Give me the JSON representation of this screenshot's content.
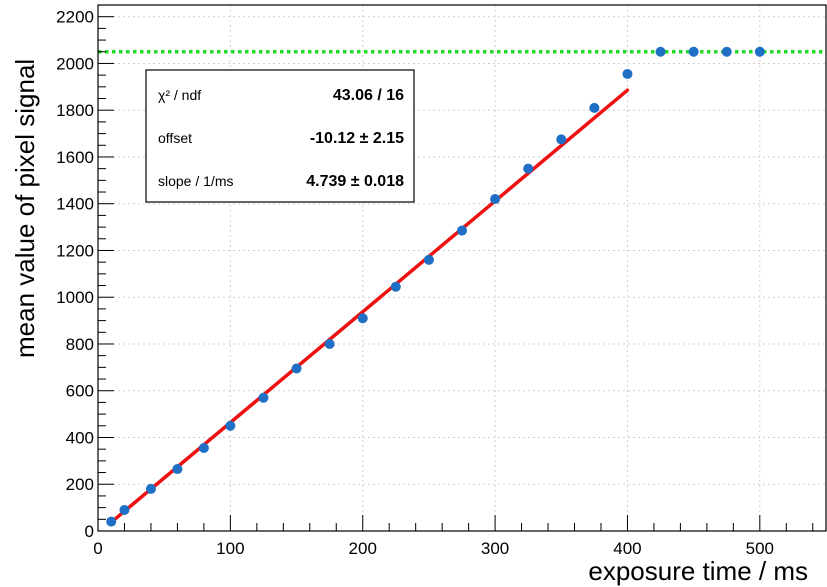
{
  "chart_data": {
    "type": "scatter",
    "title": "",
    "xlabel": "exposure time / ms",
    "ylabel": "mean value of pixel signal",
    "xlim": [
      0,
      550
    ],
    "ylim": [
      0,
      2250
    ],
    "x_ticks": [
      0,
      100,
      200,
      300,
      400,
      500
    ],
    "y_ticks": [
      0,
      200,
      400,
      600,
      800,
      1000,
      1200,
      1400,
      1600,
      1800,
      2000,
      2200
    ],
    "grid": true,
    "colors": {
      "points": "#1f6fc5",
      "fit": "#ee1111",
      "saturation": "#22dd22"
    },
    "series": [
      {
        "x": [
          10,
          20,
          40,
          60,
          80,
          100,
          125,
          150,
          175,
          200,
          225,
          250,
          275,
          300,
          325,
          350,
          375,
          400,
          425,
          450,
          475,
          500
        ],
        "y": [
          40,
          90,
          180,
          265,
          355,
          450,
          570,
          695,
          800,
          910,
          1045,
          1160,
          1285,
          1420,
          1550,
          1675,
          1810,
          1955,
          2050,
          2050,
          2050,
          2050
        ]
      }
    ],
    "fit": {
      "x": [
        10,
        400
      ],
      "offset": -10.12,
      "slope": 4.739
    },
    "saturation_level": 2050,
    "stats_box": {
      "rows": [
        {
          "label": "χ² / ndf",
          "value": "43.06 / 16"
        },
        {
          "label": "offset",
          "value": "-10.12 ± 2.15"
        },
        {
          "label": "slope / 1/ms",
          "value": "4.739 ± 0.018"
        }
      ]
    }
  }
}
